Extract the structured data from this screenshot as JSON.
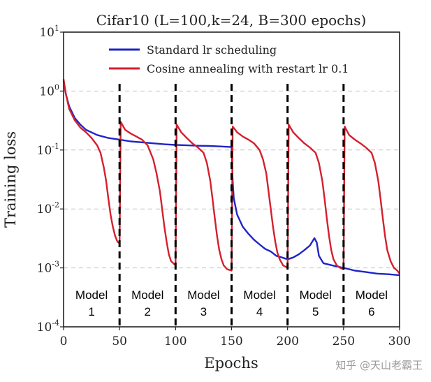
{
  "chart_data": {
    "type": "line",
    "title": "Cifar10 (L=100,k=24, B=300 epochs)",
    "xlabel": "Epochs",
    "ylabel": "Training loss",
    "xlim": [
      0,
      300
    ],
    "ylim": [
      0.0001,
      10
    ],
    "yscale": "log",
    "grid": true,
    "legend_position": "top-center",
    "x_ticks": [
      0,
      50,
      100,
      150,
      200,
      250,
      300
    ],
    "y_ticks": [
      {
        "base": "10",
        "exp": "-4",
        "value": 0.0001
      },
      {
        "base": "10",
        "exp": "-3",
        "value": 0.001
      },
      {
        "base": "10",
        "exp": "-2",
        "value": 0.01
      },
      {
        "base": "10",
        "exp": "-1",
        "value": 0.1
      },
      {
        "base": "10",
        "exp": "0",
        "value": 1
      },
      {
        "base": "10",
        "exp": "1",
        "value": 10
      }
    ],
    "restart_epochs": [
      50,
      100,
      150,
      200,
      250
    ],
    "model_labels": [
      {
        "name": "Model",
        "number": "1",
        "x": 25
      },
      {
        "name": "Model",
        "number": "2",
        "x": 75
      },
      {
        "name": "Model",
        "number": "3",
        "x": 125
      },
      {
        "name": "Model",
        "number": "4",
        "x": 175
      },
      {
        "name": "Model",
        "number": "5",
        "x": 225
      },
      {
        "name": "Model",
        "number": "6",
        "x": 275
      }
    ],
    "series": [
      {
        "name": "Standard lr scheduling",
        "color": "#1f24c8",
        "points": [
          [
            0,
            1.5
          ],
          [
            2,
            0.9
          ],
          [
            5,
            0.55
          ],
          [
            10,
            0.35
          ],
          [
            15,
            0.27
          ],
          [
            20,
            0.22
          ],
          [
            30,
            0.18
          ],
          [
            40,
            0.16
          ],
          [
            50,
            0.15
          ],
          [
            60,
            0.14
          ],
          [
            70,
            0.135
          ],
          [
            80,
            0.13
          ],
          [
            90,
            0.125
          ],
          [
            100,
            0.122
          ],
          [
            110,
            0.12
          ],
          [
            120,
            0.118
          ],
          [
            130,
            0.117
          ],
          [
            140,
            0.115
          ],
          [
            150,
            0.112
          ],
          [
            151,
            0.03
          ],
          [
            152,
            0.015
          ],
          [
            155,
            0.008
          ],
          [
            160,
            0.005
          ],
          [
            165,
            0.0038
          ],
          [
            170,
            0.003
          ],
          [
            175,
            0.0025
          ],
          [
            180,
            0.0021
          ],
          [
            185,
            0.0019
          ],
          [
            190,
            0.0016
          ],
          [
            195,
            0.0015
          ],
          [
            200,
            0.0014
          ],
          [
            205,
            0.0015
          ],
          [
            210,
            0.0017
          ],
          [
            215,
            0.002
          ],
          [
            220,
            0.0024
          ],
          [
            224,
            0.0032
          ],
          [
            226,
            0.0027
          ],
          [
            228,
            0.0016
          ],
          [
            232,
            0.0012
          ],
          [
            240,
            0.0011
          ],
          [
            250,
            0.001
          ],
          [
            255,
            0.00095
          ],
          [
            260,
            0.0009
          ],
          [
            270,
            0.00085
          ],
          [
            280,
            0.0008
          ],
          [
            290,
            0.00078
          ],
          [
            300,
            0.00075
          ]
        ]
      },
      {
        "name": "Cosine annealing with restart lr 0.1",
        "color": "#d4202e",
        "points": [
          [
            0,
            1.6
          ],
          [
            2,
            0.9
          ],
          [
            5,
            0.5
          ],
          [
            10,
            0.32
          ],
          [
            15,
            0.24
          ],
          [
            20,
            0.2
          ],
          [
            25,
            0.16
          ],
          [
            30,
            0.12
          ],
          [
            33,
            0.09
          ],
          [
            36,
            0.05
          ],
          [
            38,
            0.03
          ],
          [
            40,
            0.015
          ],
          [
            42,
            0.008
          ],
          [
            44,
            0.005
          ],
          [
            46,
            0.0035
          ],
          [
            48,
            0.0028
          ],
          [
            50,
            0.0026
          ],
          [
            51,
            0.3
          ],
          [
            55,
            0.22
          ],
          [
            60,
            0.19
          ],
          [
            65,
            0.17
          ],
          [
            70,
            0.15
          ],
          [
            75,
            0.12
          ],
          [
            80,
            0.07
          ],
          [
            83,
            0.04
          ],
          [
            86,
            0.02
          ],
          [
            88,
            0.01
          ],
          [
            90,
            0.005
          ],
          [
            92,
            0.0028
          ],
          [
            94,
            0.0017
          ],
          [
            96,
            0.0013
          ],
          [
            98,
            0.0012
          ],
          [
            100,
            0.0011
          ],
          [
            101,
            0.27
          ],
          [
            105,
            0.2
          ],
          [
            110,
            0.16
          ],
          [
            115,
            0.13
          ],
          [
            120,
            0.11
          ],
          [
            125,
            0.09
          ],
          [
            128,
            0.06
          ],
          [
            131,
            0.03
          ],
          [
            133,
            0.015
          ],
          [
            135,
            0.007
          ],
          [
            137,
            0.0035
          ],
          [
            139,
            0.002
          ],
          [
            141,
            0.0014
          ],
          [
            143,
            0.0011
          ],
          [
            146,
            0.00095
          ],
          [
            150,
            0.0009
          ],
          [
            151,
            0.25
          ],
          [
            155,
            0.2
          ],
          [
            160,
            0.17
          ],
          [
            165,
            0.15
          ],
          [
            170,
            0.13
          ],
          [
            175,
            0.1
          ],
          [
            178,
            0.07
          ],
          [
            181,
            0.04
          ],
          [
            183,
            0.02
          ],
          [
            185,
            0.01
          ],
          [
            187,
            0.005
          ],
          [
            189,
            0.0028
          ],
          [
            191,
            0.0018
          ],
          [
            193,
            0.0014
          ],
          [
            196,
            0.0011
          ],
          [
            200,
            0.001
          ],
          [
            201,
            0.27
          ],
          [
            205,
            0.2
          ],
          [
            210,
            0.16
          ],
          [
            215,
            0.13
          ],
          [
            220,
            0.11
          ],
          [
            225,
            0.09
          ],
          [
            228,
            0.06
          ],
          [
            231,
            0.03
          ],
          [
            233,
            0.015
          ],
          [
            235,
            0.007
          ],
          [
            237,
            0.0035
          ],
          [
            239,
            0.002
          ],
          [
            241,
            0.0014
          ],
          [
            244,
            0.0011
          ],
          [
            247,
            0.001
          ],
          [
            250,
            0.00095
          ],
          [
            251,
            0.25
          ],
          [
            255,
            0.18
          ],
          [
            260,
            0.15
          ],
          [
            265,
            0.13
          ],
          [
            270,
            0.11
          ],
          [
            275,
            0.09
          ],
          [
            278,
            0.06
          ],
          [
            281,
            0.03
          ],
          [
            283,
            0.015
          ],
          [
            285,
            0.007
          ],
          [
            287,
            0.0035
          ],
          [
            289,
            0.002
          ],
          [
            292,
            0.0013
          ],
          [
            295,
            0.001
          ],
          [
            298,
            0.0009
          ],
          [
            300,
            0.0008
          ]
        ]
      }
    ]
  },
  "watermark": "知乎 @天山老霸王"
}
